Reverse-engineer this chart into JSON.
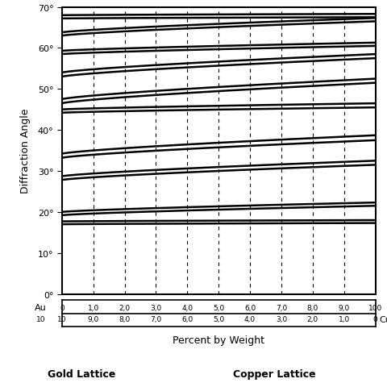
{
  "ylabel": "Diffraction Angle",
  "xlabel": "Percent by Weight",
  "bottom_label1": "Gold Lattice",
  "bottom_label2": "Copper Lattice",
  "ylim": [
    0,
    70
  ],
  "xlim": [
    0,
    10
  ],
  "dashed_x": [
    1,
    2,
    3,
    4,
    5,
    6,
    7,
    8,
    9
  ],
  "au_row": [
    "0",
    "1,0",
    "2,0",
    "3,0",
    "4,0",
    "5,0",
    "6,0",
    "7,0",
    "8,0",
    "9,0",
    "100"
  ],
  "cu_row": [
    "10",
    "9,0",
    "8,0",
    "7,0",
    "6,0",
    "5,0",
    "4,0",
    "3,0",
    "2,0",
    "1,0",
    "0"
  ],
  "curve_pairs": [
    {
      "y0_lo": 17.0,
      "y0_hi": 17.7,
      "y1_lo": 17.3,
      "y1_hi": 18.0
    },
    {
      "y0_lo": 19.2,
      "y0_hi": 20.0,
      "y1_lo": 21.5,
      "y1_hi": 22.3
    },
    {
      "y0_lo": 27.8,
      "y0_hi": 28.7,
      "y1_lo": 31.5,
      "y1_hi": 32.5
    },
    {
      "y0_lo": 33.2,
      "y0_hi": 34.2,
      "y1_lo": 37.5,
      "y1_hi": 38.7
    },
    {
      "y0_lo": 44.2,
      "y0_hi": 45.0,
      "y1_lo": 45.5,
      "y1_hi": 46.5
    },
    {
      "y0_lo": 46.5,
      "y0_hi": 47.5,
      "y1_lo": 51.5,
      "y1_hi": 52.5
    },
    {
      "y0_lo": 53.0,
      "y0_hi": 54.0,
      "y1_lo": 57.5,
      "y1_hi": 58.5
    },
    {
      "y0_lo": 58.5,
      "y0_hi": 59.3,
      "y1_lo": 60.5,
      "y1_hi": 61.3
    },
    {
      "y0_lo": 63.0,
      "y0_hi": 63.8,
      "y1_lo": 66.5,
      "y1_hi": 67.3
    },
    {
      "y0_lo": 67.2,
      "y0_hi": 68.0,
      "y1_lo": 67.5,
      "y1_hi": 68.3
    }
  ],
  "background_color": "#ffffff",
  "line_color": "#000000",
  "line_width": 1.8
}
